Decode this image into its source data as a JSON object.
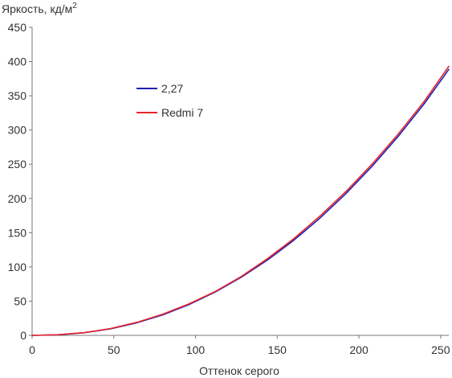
{
  "chart_data": {
    "type": "line",
    "title": "",
    "ylabel": "Яркость, кд/м",
    "ylabel_sup": "2",
    "xlabel": "Оттенок серого",
    "xlim": [
      0,
      255
    ],
    "ylim": [
      0,
      450
    ],
    "x_ticks": [
      0,
      50,
      100,
      150,
      200,
      250
    ],
    "y_ticks": [
      0,
      50,
      100,
      150,
      200,
      250,
      300,
      350,
      400,
      450
    ],
    "grid": false,
    "legend_position": "upper-left",
    "series": [
      {
        "name": "2,27",
        "color": "#1f1fb4",
        "x": [
          0,
          16,
          32,
          48,
          64,
          80,
          96,
          112,
          128,
          144,
          160,
          176,
          192,
          208,
          224,
          240,
          255
        ],
        "y": [
          0,
          0.8,
          3.9,
          9.6,
          18.3,
          30.0,
          45.0,
          63.3,
          85.0,
          110.0,
          138.7,
          171.0,
          207.0,
          246.9,
          290.7,
          338.5,
          388.5
        ]
      },
      {
        "name": "Redmi 7",
        "color": "#e8252b",
        "x": [
          0,
          16,
          32,
          48,
          64,
          80,
          96,
          112,
          128,
          144,
          160,
          176,
          192,
          208,
          224,
          240,
          255
        ],
        "y": [
          0,
          0.9,
          4.0,
          10.0,
          19.0,
          31.0,
          46.0,
          64.0,
          86.0,
          112.0,
          141.0,
          174.0,
          210.0,
          250.0,
          294.0,
          342.0,
          393.0
        ]
      }
    ]
  }
}
